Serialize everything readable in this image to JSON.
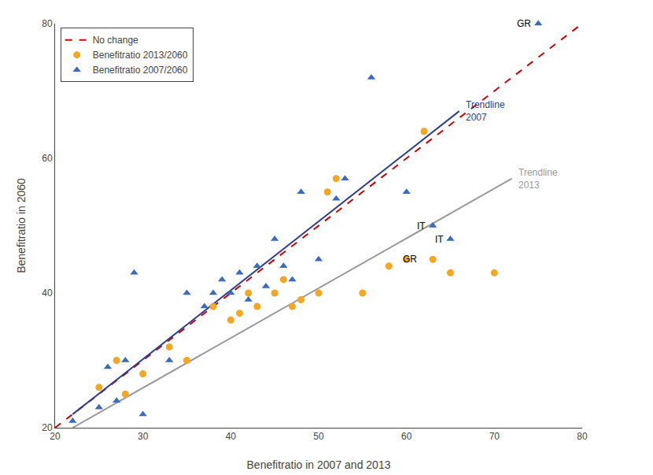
{
  "chart_data": {
    "type": "scatter",
    "xlabel": "Benefitratio in 2007 and 2013",
    "ylabel": "Benefitratio in 2060",
    "xlim": [
      20,
      80
    ],
    "ylim": [
      20,
      80
    ],
    "xticks": [
      20,
      30,
      40,
      50,
      60,
      70,
      80
    ],
    "yticks": [
      20,
      40,
      60,
      80
    ],
    "grid": false,
    "legend": "upper left",
    "series": [
      {
        "name": "No change",
        "type": "line",
        "line_style": "dashed",
        "color": "#cc0000",
        "x": [
          20,
          80
        ],
        "values": [
          20,
          80
        ]
      },
      {
        "type": "line",
        "line_style": "solid",
        "color": "#2c3e8c",
        "label": "Trendline\n2007",
        "x": [
          22,
          66
        ],
        "values": [
          22,
          67
        ]
      },
      {
        "type": "line",
        "line_style": "solid",
        "color": "#999999",
        "label": "Trendline\n2013",
        "x": [
          22,
          72
        ],
        "values": [
          20,
          57
        ]
      },
      {
        "name": "Benefitratio 2013/2060",
        "type": "scatter",
        "marker": "circle",
        "color": "#f5a623",
        "x": [
          25,
          27,
          28,
          30,
          33,
          35,
          38,
          40,
          41,
          42,
          43,
          45,
          46,
          47,
          48,
          50,
          51,
          52,
          55,
          58,
          60,
          62,
          63,
          65,
          70
        ],
        "values": [
          26,
          30,
          25,
          28,
          32,
          30,
          38,
          36,
          37,
          40,
          38,
          40,
          42,
          38,
          39,
          40,
          55,
          57,
          40,
          44,
          45,
          64,
          45,
          43,
          43
        ]
      },
      {
        "name": "Benefitratio 2007/2060",
        "type": "scatter",
        "marker": "triangle-up",
        "color": "#3a6bbf",
        "x": [
          22,
          25,
          26,
          27,
          28,
          29,
          30,
          33,
          35,
          37,
          38,
          39,
          40,
          41,
          42,
          43,
          44,
          45,
          46,
          47,
          48,
          50,
          52,
          53,
          56,
          60,
          63,
          65,
          75
        ],
        "values": [
          21,
          23,
          29,
          24,
          30,
          43,
          22,
          30,
          40,
          38,
          40,
          42,
          40,
          43,
          39,
          44,
          41,
          48,
          44,
          42,
          55,
          45,
          54,
          57,
          72,
          55,
          50,
          48,
          80
        ]
      }
    ],
    "annotations": [
      {
        "text": "GR",
        "x": 75,
        "y": 80
      },
      {
        "text": "IT",
        "x": 63,
        "y": 50
      },
      {
        "text": "GR",
        "x": 62,
        "y": 45
      },
      {
        "text": "IT",
        "x": 65,
        "y": 48
      }
    ]
  }
}
